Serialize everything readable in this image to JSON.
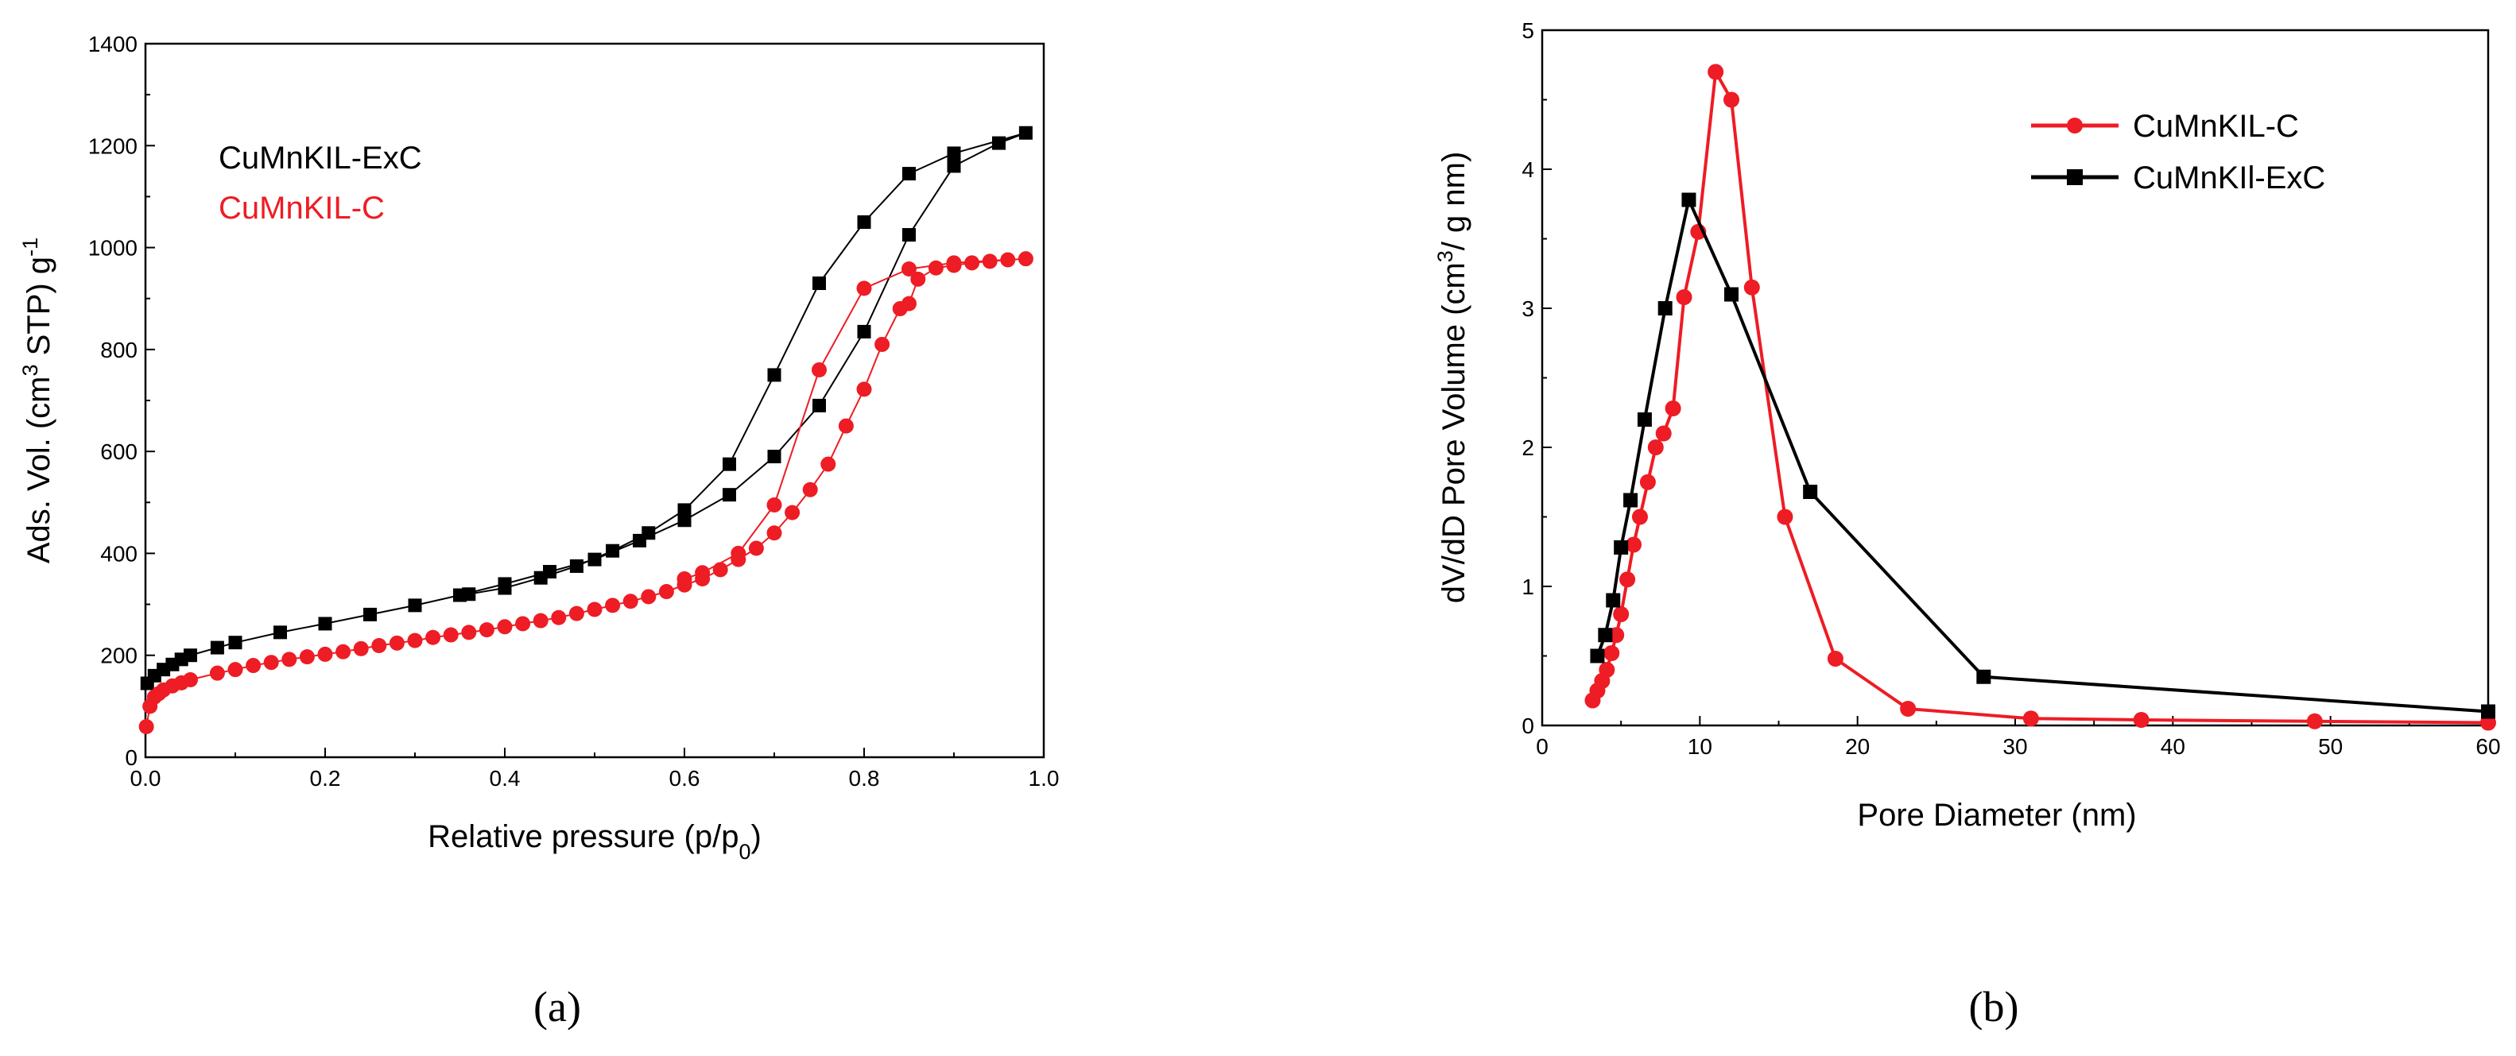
{
  "chart_data": [
    {
      "type": "line",
      "panel_label": "(a)",
      "title": "",
      "xlabel": "Relative pressure (p/p",
      "xlabel_sub": "0",
      "xlabel_end": ")",
      "ylabel_prefix": "Ads. Vol. (cm",
      "ylabel_sup1": "3",
      "ylabel_mid": " STP) g",
      "ylabel_sup2": "-1",
      "xlim": [
        0.0,
        1.0
      ],
      "ylim": [
        0,
        1400
      ],
      "xticks": [
        "0.0",
        "0.2",
        "0.4",
        "0.6",
        "0.8",
        "1.0"
      ],
      "yticks": [
        "0",
        "200",
        "400",
        "600",
        "800",
        "1000",
        "1200",
        "1400"
      ],
      "legend_position": "top-left",
      "series": [
        {
          "name": "CuMnKIL-ExC",
          "color": "#000000",
          "marker": "square",
          "x": [
            0.002,
            0.01,
            0.02,
            0.03,
            0.04,
            0.05,
            0.08,
            0.1,
            0.15,
            0.2,
            0.25,
            0.3,
            0.35,
            0.4,
            0.45,
            0.5,
            0.55,
            0.6,
            0.65,
            0.7,
            0.75,
            0.8,
            0.85,
            0.9,
            0.95,
            0.98,
            0.9,
            0.85,
            0.8,
            0.75,
            0.7,
            0.65,
            0.6,
            0.56,
            0.52,
            0.48,
            0.44,
            0.4,
            0.36
          ],
          "y": [
            145,
            160,
            172,
            182,
            192,
            200,
            215,
            225,
            245,
            262,
            280,
            298,
            318,
            340,
            364,
            388,
            425,
            465,
            515,
            590,
            690,
            835,
            1025,
            1160,
            1205,
            1225,
            1185,
            1145,
            1050,
            930,
            750,
            575,
            485,
            440,
            405,
            375,
            352,
            332,
            320
          ]
        },
        {
          "name": "CuMnKIL-C",
          "color": "#ee1c24",
          "marker": "circle",
          "x": [
            0.001,
            0.005,
            0.01,
            0.015,
            0.02,
            0.03,
            0.04,
            0.05,
            0.08,
            0.1,
            0.12,
            0.14,
            0.16,
            0.18,
            0.2,
            0.22,
            0.24,
            0.26,
            0.28,
            0.3,
            0.32,
            0.34,
            0.36,
            0.38,
            0.4,
            0.42,
            0.44,
            0.46,
            0.48,
            0.5,
            0.52,
            0.54,
            0.56,
            0.58,
            0.6,
            0.62,
            0.64,
            0.66,
            0.68,
            0.7,
            0.72,
            0.74,
            0.76,
            0.78,
            0.8,
            0.82,
            0.84,
            0.85,
            0.86,
            0.88,
            0.9,
            0.92,
            0.94,
            0.96,
            0.98,
            0.9,
            0.85,
            0.8,
            0.75,
            0.7,
            0.66,
            0.62,
            0.6
          ],
          "y": [
            60,
            100,
            118,
            125,
            132,
            140,
            146,
            152,
            165,
            172,
            180,
            186,
            192,
            197,
            202,
            207,
            213,
            219,
            224,
            229,
            235,
            240,
            245,
            250,
            256,
            262,
            268,
            274,
            282,
            290,
            298,
            306,
            315,
            325,
            338,
            350,
            368,
            388,
            410,
            440,
            480,
            525,
            575,
            650,
            722,
            810,
            880,
            890,
            938,
            960,
            965,
            970,
            973,
            976,
            978,
            970,
            958,
            920,
            760,
            495,
            400,
            362,
            350
          ]
        }
      ]
    },
    {
      "type": "line",
      "panel_label": "(b)",
      "title": "",
      "xlabel": "Pore Diameter (nm)",
      "ylabel_prefix": "dV/dD Pore Volume  (cm",
      "ylabel_sup1": "3",
      "ylabel_mid": "/ g nm)",
      "xlim": [
        0,
        60
      ],
      "ylim": [
        0,
        5
      ],
      "xticks": [
        "0",
        "10",
        "20",
        "30",
        "40",
        "50",
        "60"
      ],
      "yticks": [
        "0",
        "1",
        "2",
        "3",
        "4",
        "5"
      ],
      "legend_position": "top-right",
      "series": [
        {
          "name": "CuMnKIL-C",
          "color": "#ee1c24",
          "marker": "circle",
          "x": [
            3.2,
            3.5,
            3.8,
            4.1,
            4.4,
            4.7,
            5.0,
            5.4,
            5.8,
            6.2,
            6.7,
            7.2,
            7.7,
            8.3,
            9.0,
            9.9,
            11.0,
            12.0,
            13.3,
            15.4,
            18.6,
            23.2,
            31.0,
            38.0,
            49.0,
            60.0
          ],
          "y": [
            0.18,
            0.25,
            0.32,
            0.4,
            0.52,
            0.65,
            0.8,
            1.05,
            1.3,
            1.5,
            1.75,
            2.0,
            2.1,
            2.28,
            3.08,
            3.55,
            4.7,
            4.5,
            3.15,
            1.5,
            0.48,
            0.12,
            0.05,
            0.04,
            0.03,
            0.02
          ]
        },
        {
          "name": "CuMnKIl-ExC",
          "color": "#000000",
          "marker": "square",
          "x": [
            3.5,
            4.0,
            4.5,
            5.0,
            5.6,
            6.5,
            7.8,
            9.3,
            12.0,
            17.0,
            28.0,
            60.0
          ],
          "y": [
            0.5,
            0.65,
            0.9,
            1.28,
            1.62,
            2.2,
            3.0,
            3.78,
            3.1,
            1.68,
            0.35,
            0.1
          ]
        }
      ]
    }
  ]
}
